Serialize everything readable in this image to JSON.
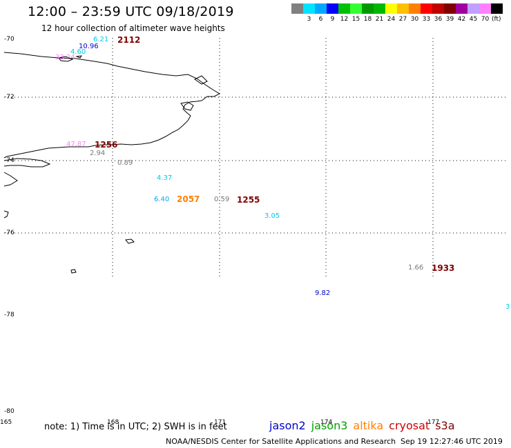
{
  "title": "12:00 – 23:59 UTC 09/18/2019",
  "subtitle": "12 hour collection of altimeter wave heights",
  "colorbar": {
    "unit": "(ft)",
    "swatches": [
      {
        "color": "#808080",
        "label": ""
      },
      {
        "color": "#00e5ff",
        "label": "3"
      },
      {
        "color": "#00a8ff",
        "label": "6"
      },
      {
        "color": "#0000ff",
        "label": "9"
      },
      {
        "color": "#00c000",
        "label": "12"
      },
      {
        "color": "#33ff33",
        "label": "15"
      },
      {
        "color": "#009a00",
        "label": "18"
      },
      {
        "color": "#00b800",
        "label": "21"
      },
      {
        "color": "#ffff00",
        "label": "24"
      },
      {
        "color": "#ffc000",
        "label": "27"
      },
      {
        "color": "#ff8000",
        "label": "30"
      },
      {
        "color": "#ff0000",
        "label": "33"
      },
      {
        "color": "#c00000",
        "label": "36"
      },
      {
        "color": "#800000",
        "label": "39"
      },
      {
        "color": "#a000a0",
        "label": "42"
      },
      {
        "color": "#c0a0ff",
        "label": "45"
      },
      {
        "color": "#ff80ff",
        "label": "70"
      },
      {
        "color": "#000000",
        "label": ""
      }
    ]
  },
  "latitudes": [
    "-70",
    "-72",
    "-74",
    "-76",
    "-78",
    "-80"
  ],
  "longitudes": [
    "165",
    "168",
    "171",
    "174",
    "177"
  ],
  "wave_heights": [
    {
      "value": "6.21",
      "color": "#00c8e8"
    },
    {
      "value": "10.96",
      "color": "#0000cc"
    },
    {
      "value": "4.60",
      "color": "#00c8e8"
    },
    {
      "value": "33.24",
      "color": "#ff80ff"
    },
    {
      "value": "47.87",
      "color": "#ff80ff"
    },
    {
      "value": "2.94",
      "color": "#777777"
    },
    {
      "value": "0.89",
      "color": "#777777"
    },
    {
      "value": "4.37",
      "color": "#00c8e8"
    },
    {
      "value": "6.40",
      "color": "#00a8ff"
    },
    {
      "value": "0.59",
      "color": "#777777"
    },
    {
      "value": "3.05",
      "color": "#00c8e8"
    },
    {
      "value": "1.66",
      "color": "#777777"
    },
    {
      "value": "9.82",
      "color": "#0000cc"
    },
    {
      "value": "3",
      "color": "#00c8e8"
    }
  ],
  "pass_times": [
    {
      "time": "2112",
      "color": "#800000"
    },
    {
      "time": "1256",
      "color": "#800000"
    },
    {
      "time": "2057",
      "color": "#ff8000"
    },
    {
      "time": "1255",
      "color": "#800000"
    },
    {
      "time": "1933",
      "color": "#800000"
    }
  ],
  "note": "note:  1) Time is in UTC;  2) SWH is in feet",
  "legend": [
    {
      "name": "jason2",
      "color": "#0000cc"
    },
    {
      "name": "jason3",
      "color": "#00a000"
    },
    {
      "name": "altika",
      "color": "#ff8000"
    },
    {
      "name": "cryosat",
      "color": "#cc0000"
    },
    {
      "name": "s3a",
      "color": "#800000"
    }
  ],
  "footer_credit": "NOAA/NESDIS Center for Satellite Applications and Research",
  "footer_date": "Sep 19 12:27:46 UTC 2019"
}
